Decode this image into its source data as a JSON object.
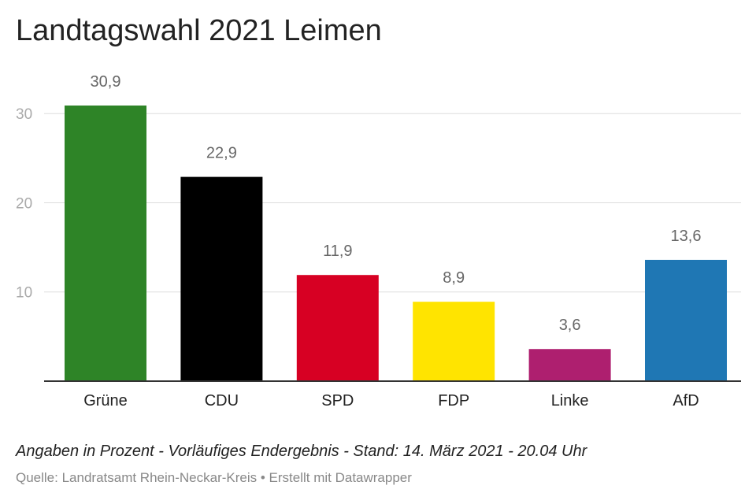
{
  "title": "Landtagswahl 2021 Leimen",
  "notes": "Angaben in Prozent - Vorläufiges Endergebnis - Stand: 14. März 2021 - 20.04 Uhr",
  "source": "Quelle: Landratsamt Rhein-Neckar-Kreis • Erstellt mit Datawrapper",
  "chart_data": {
    "type": "bar",
    "categories": [
      "Grüne",
      "CDU",
      "SPD",
      "FDP",
      "Linke",
      "AfD"
    ],
    "values": [
      30.9,
      22.9,
      11.9,
      8.9,
      3.6,
      13.6
    ],
    "value_labels": [
      "30,9",
      "22,9",
      "11,9",
      "8,9",
      "3,6",
      "13,6"
    ],
    "colors": [
      "#2e8427",
      "#000000",
      "#d70023",
      "#ffe400",
      "#ae1f6f",
      "#1f77b4"
    ],
    "yticks": [
      10,
      20,
      30
    ],
    "ytick_labels": [
      "10",
      "20",
      "30"
    ],
    "ylim": [
      0,
      30.9
    ],
    "grid": true,
    "xlabel": "",
    "ylabel": ""
  }
}
